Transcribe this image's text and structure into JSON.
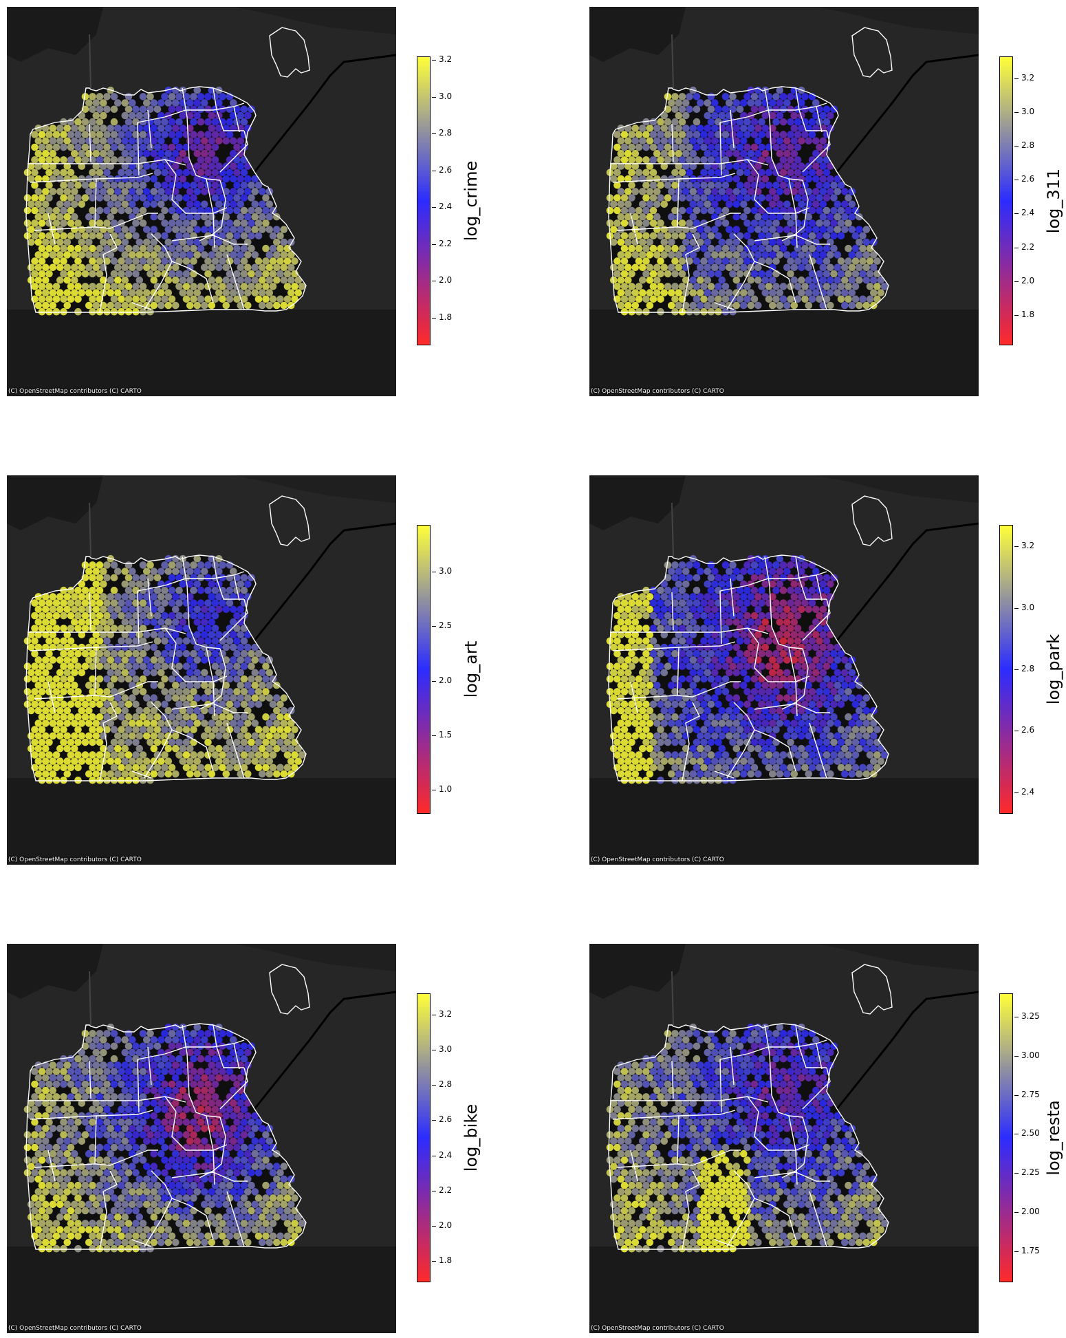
{
  "attribution": "(C) OpenStreetMap contributors (C) CARTO",
  "colors": {
    "low": "#ff2a2a",
    "mid": "#2c2cff",
    "high": "#ffff3a",
    "background": "#262626",
    "land": "#121212",
    "boundary": "#ffffff"
  },
  "colormap": "red-blue-yellow",
  "panels": [
    {
      "id": "crime",
      "label": "log_crime",
      "vmin": 1.65,
      "vmax": 3.22,
      "ticks": [
        1.8,
        2.0,
        2.2,
        2.4,
        2.6,
        2.8,
        3.0,
        3.2
      ],
      "tick_labels": [
        "1.8",
        "2.0",
        "2.2",
        "2.4",
        "2.6",
        "2.8",
        "3.0",
        "3.2"
      ]
    },
    {
      "id": "311",
      "label": "log_311",
      "vmin": 1.62,
      "vmax": 3.33,
      "ticks": [
        1.8,
        2.0,
        2.2,
        2.4,
        2.6,
        2.8,
        3.0,
        3.2
      ],
      "tick_labels": [
        "1.8",
        "2.0",
        "2.2",
        "2.4",
        "2.6",
        "2.8",
        "3.0",
        "3.2"
      ]
    },
    {
      "id": "art",
      "label": "log_art",
      "vmin": 0.78,
      "vmax": 3.43,
      "ticks": [
        1.0,
        1.5,
        2.0,
        2.5,
        3.0
      ],
      "tick_labels": [
        "1.0",
        "1.5",
        "2.0",
        "2.5",
        "3.0"
      ]
    },
    {
      "id": "park",
      "label": "log_park",
      "vmin": 2.33,
      "vmax": 3.27,
      "ticks": [
        2.4,
        2.6,
        2.8,
        3.0,
        3.2
      ],
      "tick_labels": [
        "2.4",
        "2.6",
        "2.8",
        "3.0",
        "3.2"
      ]
    },
    {
      "id": "bike",
      "label": "log_bike",
      "vmin": 1.68,
      "vmax": 3.32,
      "ticks": [
        1.8,
        2.0,
        2.2,
        2.4,
        2.6,
        2.8,
        3.0,
        3.2
      ],
      "tick_labels": [
        "1.8",
        "2.0",
        "2.2",
        "2.4",
        "2.6",
        "2.8",
        "3.0",
        "3.2"
      ]
    },
    {
      "id": "resta",
      "label": "log_resta",
      "vmin": 1.55,
      "vmax": 3.4,
      "ticks": [
        1.75,
        2.0,
        2.25,
        2.5,
        2.75,
        3.0,
        3.25
      ],
      "tick_labels": [
        "1.75",
        "2.00",
        "2.25",
        "2.50",
        "2.75",
        "3.00",
        "3.25"
      ]
    }
  ]
}
